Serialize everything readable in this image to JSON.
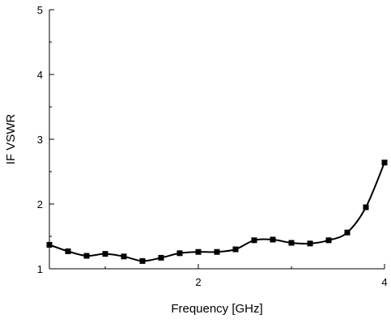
{
  "chart_data": {
    "type": "line",
    "xlabel": "Frequency [GHz]",
    "ylabel": "IF VSWR",
    "xlim": [
      0.4,
      4.0
    ],
    "ylim": [
      1,
      5
    ],
    "x_ticks": [
      2,
      4
    ],
    "y_ticks": [
      1,
      2,
      3,
      4,
      5
    ],
    "grid": false,
    "marker": "square",
    "colors": {
      "line": "#000000",
      "marker": "#000000",
      "axis": "#000000"
    },
    "series": [
      {
        "x": [
          0.4,
          0.6,
          0.8,
          1.0,
          1.2,
          1.4,
          1.6,
          1.8,
          2.0,
          2.2,
          2.4,
          2.6,
          2.8,
          3.0,
          3.2,
          3.4,
          3.6,
          3.8,
          4.0
        ],
        "values": [
          1.37,
          1.27,
          1.2,
          1.23,
          1.19,
          1.12,
          1.17,
          1.24,
          1.26,
          1.26,
          1.3,
          1.44,
          1.45,
          1.4,
          1.39,
          1.44,
          1.56,
          1.95,
          2.64
        ]
      }
    ]
  }
}
